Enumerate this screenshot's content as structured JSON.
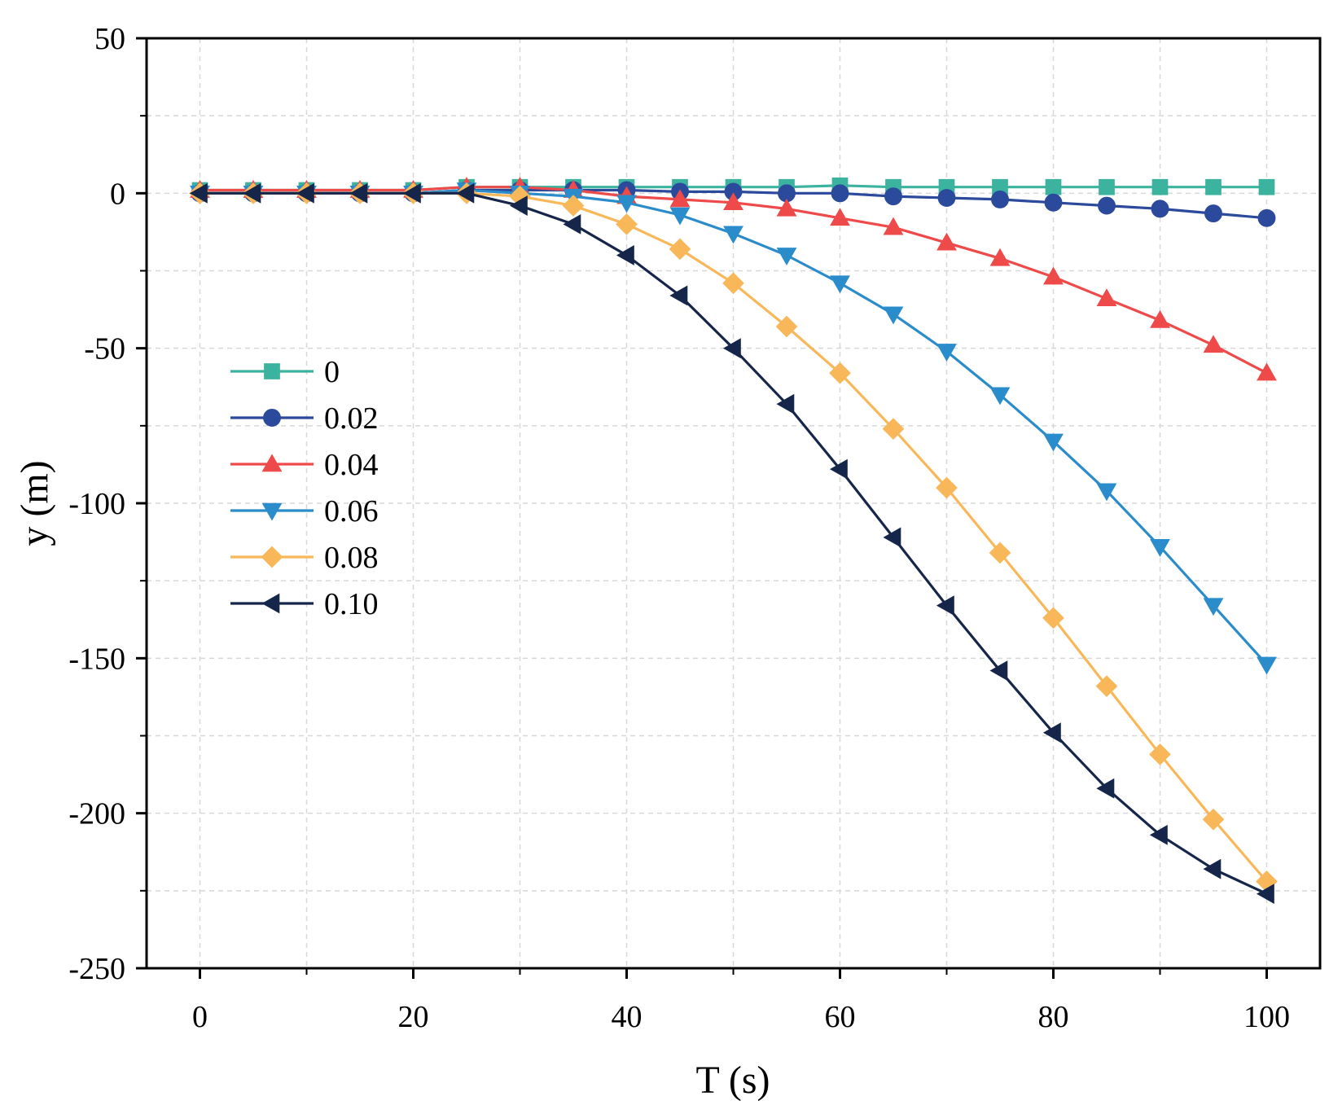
{
  "chart_data": {
    "type": "line",
    "title": "",
    "xlabel": "T (s)",
    "ylabel": "y (m)",
    "xlim": [
      -5,
      105
    ],
    "ylim": [
      -250,
      50
    ],
    "xticks": [
      0,
      20,
      40,
      60,
      80,
      100
    ],
    "xtick_labels": [
      "0",
      "20",
      "40",
      "60",
      "80",
      "100"
    ],
    "yticks": [
      50,
      0,
      -50,
      -100,
      -150,
      -200,
      -250
    ],
    "ytick_labels": [
      "50",
      "0",
      "-50",
      "-100",
      "-150",
      "-200",
      "-250"
    ],
    "grid": true,
    "legend_position": "middle-left",
    "x": [
      0,
      5,
      10,
      15,
      20,
      25,
      30,
      35,
      40,
      45,
      50,
      55,
      60,
      65,
      70,
      75,
      80,
      85,
      90,
      95,
      100
    ],
    "series": [
      {
        "name": "0",
        "color": "#3cb39e",
        "marker": "square",
        "values": [
          1,
          1,
          1,
          1,
          1,
          2,
          2,
          2,
          2,
          2,
          2,
          2,
          2.5,
          2,
          2,
          2,
          2,
          2,
          2,
          2,
          2
        ]
      },
      {
        "name": "0.02",
        "color": "#2b4a9c",
        "marker": "circle",
        "values": [
          0,
          0,
          0,
          0,
          0,
          1,
          1,
          1,
          1,
          0.5,
          0.5,
          0,
          0,
          -1,
          -1.5,
          -2,
          -3,
          -4,
          -5,
          -6.5,
          -8
        ]
      },
      {
        "name": "0.04",
        "color": "#ee4a4a",
        "marker": "triangle-up",
        "values": [
          1,
          1,
          1,
          1,
          1,
          2,
          2,
          1,
          -1,
          -2,
          -3,
          -5,
          -8,
          -11,
          -16,
          -21,
          -27,
          -34,
          -41,
          -49,
          -58
        ]
      },
      {
        "name": "0.06",
        "color": "#2b8ccb",
        "marker": "triangle-down",
        "values": [
          0,
          0,
          0,
          0,
          0,
          1,
          0,
          -1,
          -3,
          -7,
          -13,
          -20,
          -29,
          -39,
          -51,
          -65,
          -80,
          -96,
          -114,
          -133,
          -152
        ]
      },
      {
        "name": "0.08",
        "color": "#f8b85a",
        "marker": "diamond",
        "values": [
          0,
          0,
          0,
          0,
          0,
          0,
          -1,
          -4,
          -10,
          -18,
          -29,
          -43,
          -58,
          -76,
          -95,
          -116,
          -137,
          -159,
          -181,
          -202,
          -222
        ]
      },
      {
        "name": "0.10",
        "color": "#15264a",
        "marker": "triangle-left",
        "values": [
          0,
          0,
          0,
          0,
          0,
          0,
          -4,
          -10,
          -20,
          -33,
          -50,
          -68,
          -89,
          -111,
          -133,
          -154,
          -174,
          -192,
          -207,
          -218,
          -226
        ]
      }
    ]
  }
}
